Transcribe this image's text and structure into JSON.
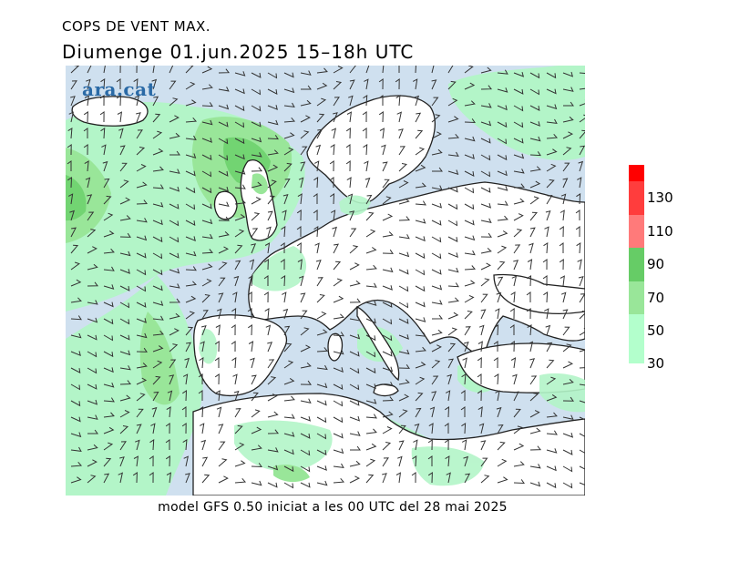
{
  "header": {
    "title": "COPS DE VENT MAX.",
    "subtitle": "Diumenge  01.jun.2025  15–18h  UTC"
  },
  "logo": {
    "text": "ara.cat"
  },
  "footer": {
    "text": "model GFS 0.50 iniciat a les 00 UTC del 28 mai 2025"
  },
  "legend": {
    "labels": [
      "130",
      "110",
      "90",
      "70",
      "50",
      "30"
    ],
    "colors": [
      "#ff0000",
      "#ff3d3d",
      "#ff7a7a",
      "#66cc66",
      "#99e699",
      "#b3ffcc"
    ]
  },
  "map": {
    "sea_color": "#cfe0ef",
    "land_color": "#ffffff",
    "gust_colors": {
      "30-50": "#b3f5c8",
      "50-70": "#99e699",
      "70-90": "#72d472"
    },
    "coastline_color": "#222222",
    "barb_color": "#333333"
  }
}
